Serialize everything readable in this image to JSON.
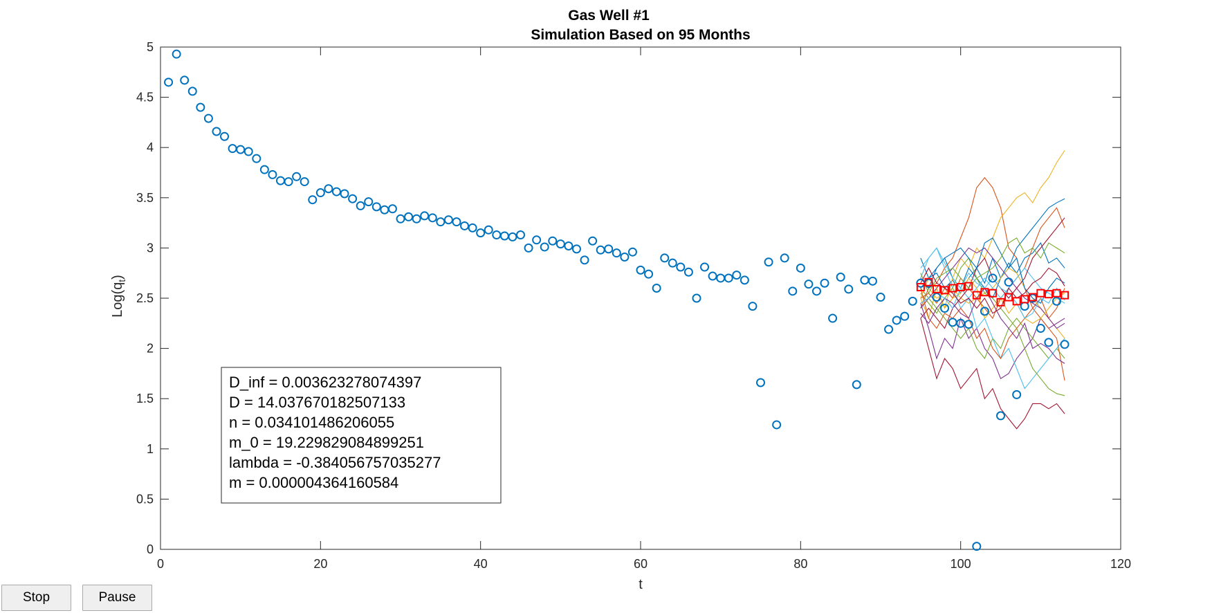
{
  "buttons": {
    "stop_label": "Stop",
    "pause_label": "Pause"
  },
  "chart_data": {
    "type": "scatter",
    "title": "Gas Well #1",
    "subtitle": "Simulation Based on 95 Months",
    "xlabel": "t",
    "ylabel_base": "Log(q",
    "ylabel_sub": "t",
    "ylabel_close": ")",
    "xlim": [
      0,
      120
    ],
    "ylim": [
      0,
      5
    ],
    "xticks": [
      0,
      20,
      40,
      60,
      80,
      100,
      120
    ],
    "yticks": [
      0,
      0.5,
      1,
      1.5,
      2,
      2.5,
      3,
      3.5,
      4,
      4.5,
      5
    ],
    "xtick_labels": [
      "0",
      "20",
      "40",
      "60",
      "80",
      "100",
      "120"
    ],
    "ytick_labels": [
      "0",
      "0.5",
      "1",
      "1.5",
      "2",
      "2.5",
      "3",
      "3.5",
      "4",
      "4.5",
      "5"
    ],
    "grid": false,
    "colors": {
      "observed": "#0072BD",
      "mean": "#FF0000",
      "sim_palette": [
        "#0072BD",
        "#D95319",
        "#EDB120",
        "#7E2F8E",
        "#77AC30",
        "#4DBEEE",
        "#A2142F"
      ]
    },
    "annotation_lines": [
      "D_inf = 0.003623278074397",
      "D = 14.037670182507133",
      "n = 0.034101486206055",
      "m_0 = 19.229829084899251",
      "lambda = -0.384056757035277",
      "m = 0.000004364160584"
    ],
    "observed": {
      "x": [
        1,
        2,
        3,
        4,
        5,
        6,
        7,
        8,
        9,
        10,
        11,
        12,
        13,
        14,
        15,
        16,
        17,
        18,
        19,
        20,
        21,
        22,
        23,
        24,
        25,
        26,
        27,
        28,
        29,
        30,
        31,
        32,
        33,
        34,
        35,
        36,
        37,
        38,
        39,
        40,
        41,
        42,
        43,
        44,
        45,
        46,
        47,
        48,
        49,
        50,
        51,
        52,
        53,
        54,
        55,
        56,
        57,
        58,
        59,
        60,
        61,
        62,
        63,
        64,
        65,
        66,
        67,
        68,
        69,
        70,
        71,
        72,
        73,
        74,
        75,
        76,
        77,
        78,
        79,
        80,
        81,
        82,
        83,
        84,
        85,
        86,
        87,
        88,
        89,
        90,
        91,
        92,
        93,
        94,
        95,
        96,
        97,
        98,
        99,
        100,
        101,
        102,
        103,
        104,
        105,
        106,
        107,
        108,
        109,
        110,
        111,
        112,
        113
      ],
      "y": [
        4.65,
        4.93,
        4.67,
        4.56,
        4.4,
        4.29,
        4.16,
        4.11,
        3.99,
        3.98,
        3.96,
        3.89,
        3.78,
        3.73,
        3.67,
        3.66,
        3.71,
        3.66,
        3.48,
        3.55,
        3.59,
        3.56,
        3.54,
        3.49,
        3.42,
        3.46,
        3.41,
        3.38,
        3.39,
        3.29,
        3.31,
        3.29,
        3.32,
        3.3,
        3.26,
        3.28,
        3.26,
        3.22,
        3.2,
        3.15,
        3.18,
        3.13,
        3.12,
        3.11,
        3.13,
        3.0,
        3.08,
        3.01,
        3.07,
        3.04,
        3.02,
        2.99,
        2.88,
        3.07,
        2.98,
        2.99,
        2.95,
        2.91,
        2.96,
        2.78,
        2.74,
        2.6,
        2.9,
        2.85,
        2.81,
        2.76,
        2.5,
        2.81,
        2.72,
        2.7,
        2.7,
        2.73,
        2.68,
        2.42,
        1.66,
        2.86,
        1.24,
        2.9,
        2.57,
        2.8,
        2.64,
        2.57,
        2.65,
        2.3,
        2.71,
        2.59,
        1.64,
        2.68,
        2.67,
        2.51,
        2.19,
        2.28,
        2.32,
        2.47,
        2.65,
        2.65,
        2.51,
        2.4,
        2.26,
        2.25,
        2.24,
        0.03,
        2.37,
        2.7,
        1.33,
        2.66,
        1.54,
        2.42,
        2.5,
        2.2,
        2.06,
        2.47,
        2.04
      ]
    },
    "mean_forecast": {
      "x": [
        95,
        96,
        97,
        98,
        99,
        100,
        101,
        102,
        103,
        104,
        105,
        106,
        107,
        108,
        109,
        110,
        111,
        112,
        113
      ],
      "y": [
        2.61,
        2.66,
        2.59,
        2.58,
        2.6,
        2.61,
        2.62,
        2.53,
        2.56,
        2.55,
        2.46,
        2.51,
        2.47,
        2.49,
        2.51,
        2.55,
        2.54,
        2.55,
        2.53
      ]
    },
    "simulations": {
      "x": [
        95,
        96,
        97,
        98,
        99,
        100,
        101,
        102,
        103,
        104,
        105,
        106,
        107,
        108,
        109,
        110,
        111,
        112,
        113
      ],
      "paths": [
        [
          2.9,
          2.7,
          2.75,
          2.6,
          2.68,
          2.55,
          2.7,
          2.8,
          2.65,
          2.9,
          2.7,
          2.85,
          2.75,
          2.9,
          2.95,
          3.05,
          2.85,
          2.9,
          2.8
        ],
        [
          2.4,
          2.6,
          2.65,
          2.8,
          2.9,
          3.1,
          3.3,
          3.6,
          3.7,
          3.6,
          3.4,
          3.0,
          2.9,
          2.6,
          2.4,
          2.5,
          2.3,
          2.4,
          2.6
        ],
        [
          2.5,
          2.3,
          2.6,
          2.4,
          2.7,
          2.9,
          2.8,
          3.0,
          2.9,
          3.1,
          3.3,
          3.4,
          3.5,
          3.55,
          3.45,
          3.6,
          3.7,
          3.85,
          3.97
        ],
        [
          2.45,
          2.2,
          1.9,
          2.1,
          2.0,
          2.3,
          2.1,
          2.2,
          2.0,
          1.9,
          1.7,
          1.75,
          1.9,
          2.0,
          2.1,
          2.3,
          2.2,
          2.25,
          2.3
        ],
        [
          2.6,
          2.5,
          2.4,
          2.3,
          2.2,
          2.1,
          2.2,
          2.0,
          1.9,
          2.1,
          2.0,
          2.2,
          2.3,
          2.2,
          2.1,
          2.0,
          1.9,
          2.0,
          1.9
        ],
        [
          2.7,
          2.9,
          3.0,
          2.8,
          2.6,
          2.4,
          2.5,
          2.2,
          2.3,
          2.1,
          1.9,
          2.0,
          1.8,
          1.6,
          1.7,
          1.8,
          1.9,
          2.0,
          2.1
        ],
        [
          2.3,
          2.0,
          1.7,
          1.9,
          1.8,
          1.6,
          1.7,
          1.8,
          1.5,
          1.6,
          1.4,
          1.3,
          1.2,
          1.3,
          1.45,
          1.45,
          1.4,
          1.45,
          1.35
        ],
        [
          2.6,
          2.7,
          2.8,
          2.9,
          2.7,
          2.6,
          2.8,
          2.7,
          2.6,
          2.5,
          2.7,
          2.8,
          3.0,
          3.1,
          3.2,
          3.3,
          3.4,
          3.45,
          3.49
        ],
        [
          2.5,
          2.55,
          2.45,
          2.6,
          2.5,
          2.7,
          2.6,
          2.5,
          2.4,
          2.3,
          2.5,
          2.6,
          2.7,
          2.8,
          3.0,
          3.2,
          3.3,
          3.4,
          3.2
        ],
        [
          2.65,
          2.6,
          2.5,
          2.55,
          2.6,
          2.5,
          2.45,
          2.5,
          2.55,
          2.6,
          2.7,
          2.8,
          2.75,
          2.6,
          2.5,
          2.4,
          2.3,
          2.2,
          2.1
        ],
        [
          2.4,
          2.5,
          2.6,
          2.7,
          2.8,
          2.9,
          3.0,
          2.95,
          3.0,
          2.9,
          2.8,
          2.7,
          2.6,
          2.5,
          2.45,
          2.4,
          2.3,
          2.2,
          2.25
        ],
        [
          2.55,
          2.45,
          2.35,
          2.5,
          2.6,
          2.8,
          2.9,
          2.7,
          2.55,
          2.5,
          2.4,
          2.3,
          2.2,
          2.0,
          1.8,
          1.7,
          1.6,
          1.55,
          1.53
        ],
        [
          2.8,
          2.9,
          3.0,
          2.85,
          2.7,
          2.6,
          2.5,
          2.6,
          2.7,
          2.6,
          2.5,
          2.6,
          2.7,
          2.8,
          2.7,
          2.6,
          2.55,
          2.5,
          2.45
        ],
        [
          2.3,
          2.4,
          2.3,
          2.2,
          2.4,
          2.5,
          2.6,
          2.8,
          2.9,
          2.7,
          2.6,
          2.5,
          2.6,
          2.7,
          2.9,
          3.0,
          3.1,
          3.2,
          3.3
        ],
        [
          2.7,
          2.6,
          2.8,
          2.9,
          2.95,
          3.0,
          2.9,
          2.8,
          3.05,
          3.1,
          2.95,
          2.8,
          2.9,
          2.6,
          2.5,
          2.45,
          2.6,
          2.7,
          2.65
        ],
        [
          2.6,
          2.3,
          2.2,
          2.35,
          2.3,
          2.4,
          2.3,
          2.1,
          2.2,
          2.0,
          1.9,
          2.1,
          2.2,
          2.3,
          2.4,
          2.3,
          2.2,
          2.1,
          1.68
        ],
        [
          2.5,
          2.7,
          2.6,
          2.4,
          2.5,
          2.55,
          2.7,
          2.6,
          2.3,
          2.4,
          2.5,
          2.35,
          2.45,
          2.3,
          2.25,
          2.3,
          2.4,
          2.5,
          2.55
        ],
        [
          2.35,
          2.25,
          2.4,
          2.5,
          2.45,
          2.35,
          2.3,
          2.5,
          2.6,
          2.45,
          2.3,
          2.2,
          2.1,
          2.25,
          2.0,
          2.05,
          2.0,
          1.9,
          1.85
        ],
        [
          2.75,
          2.55,
          2.7,
          2.75,
          2.8,
          2.7,
          2.6,
          2.7,
          2.75,
          2.8,
          2.9,
          3.05,
          3.1,
          2.95,
          3.0,
          2.9,
          3.05,
          3.0,
          2.95
        ],
        [
          2.45,
          2.5,
          2.55,
          2.5,
          2.4,
          2.6,
          2.75,
          2.65,
          2.6,
          2.7,
          2.6,
          2.55,
          2.45,
          2.3,
          2.35,
          2.5,
          2.45,
          2.6,
          2.48
        ],
        [
          2.65,
          2.8,
          2.65,
          2.6,
          2.55,
          2.45,
          2.5,
          2.4,
          2.5,
          2.35,
          2.4,
          2.6,
          2.5,
          2.55,
          2.65,
          2.7,
          2.8,
          2.75,
          2.62
        ]
      ]
    }
  }
}
